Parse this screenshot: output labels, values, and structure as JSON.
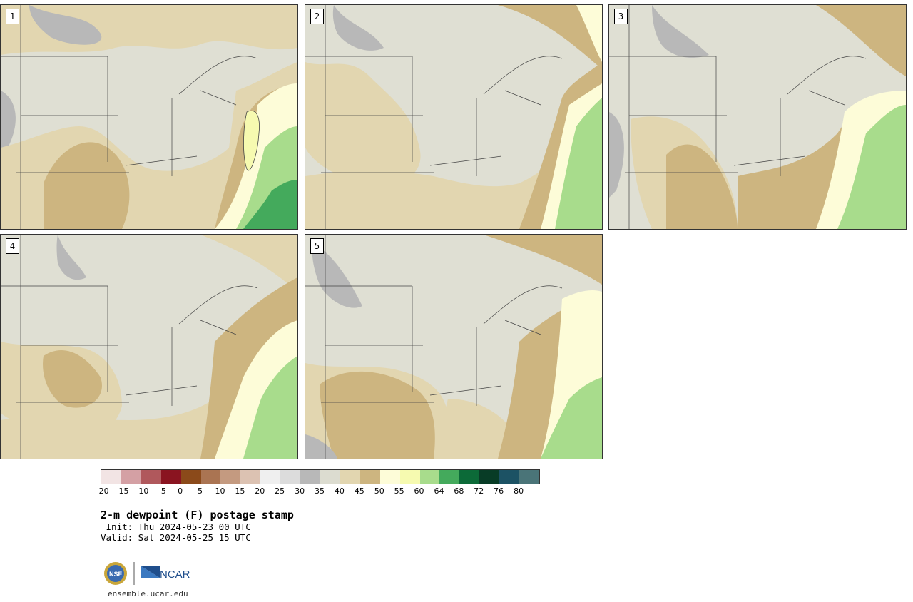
{
  "panels": [
    {
      "label": "1"
    },
    {
      "label": "2"
    },
    {
      "label": "3"
    },
    {
      "label": "4"
    },
    {
      "label": "5"
    }
  ],
  "colorbar": {
    "colors": [
      "#f2e4e4",
      "#d4a0a4",
      "#b0585c",
      "#8a1420",
      "#8b4a1a",
      "#aa7452",
      "#c49a80",
      "#dcc2b2",
      "#efefef",
      "#dcdcdc",
      "#b8b8b8",
      "#dcdcd0",
      "#e2d6b0",
      "#cdb580",
      "#fdfcd8",
      "#f6fab0",
      "#a8dc8c",
      "#44aa5c",
      "#0c6a38",
      "#083c26",
      "#1c5264",
      "#4a7478"
    ],
    "ticks": [
      "−20",
      "−15",
      "−10",
      "−5",
      "0",
      "5",
      "10",
      "15",
      "20",
      "25",
      "30",
      "35",
      "40",
      "45",
      "50",
      "55",
      "60",
      "64",
      "68",
      "72",
      "76",
      "80"
    ]
  },
  "title": "2-m dewpoint (F) postage stamp",
  "init": " Init: Thu 2024-05-23 00 UTC",
  "valid": "Valid: Sat 2024-05-25 15 UTC",
  "logos": {
    "left_text": "NSF",
    "right_text": "NCAR"
  },
  "website": "ensemble.ucar.edu"
}
